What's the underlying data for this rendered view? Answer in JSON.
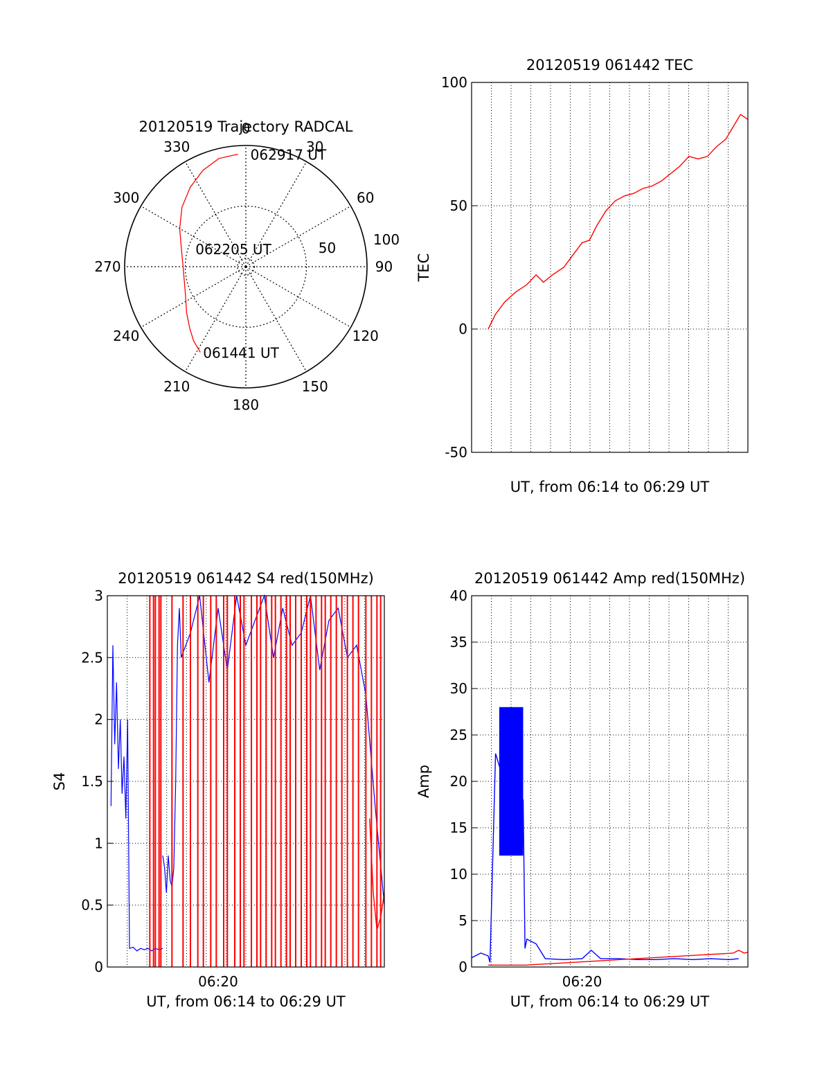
{
  "colors": {
    "red": "#ff0000",
    "blue": "#0000ff",
    "axis": "#000000",
    "grid": "#000000",
    "background": "#ffffff"
  },
  "chart_data": [
    {
      "id": "polar",
      "type": "polar-trajectory",
      "title": "20120519 Trajectory RADCAL",
      "angle_labels": [
        "0",
        "30",
        "60",
        "90",
        "120",
        "150",
        "180",
        "210",
        "240",
        "270",
        "300",
        "330"
      ],
      "radial_labels": [
        "50",
        "100"
      ],
      "rlim": [
        0,
        100
      ],
      "grid": true,
      "series": [
        {
          "color": "red",
          "points": [
            [
              208,
              80
            ],
            [
              215,
              75
            ],
            [
              222,
              69
            ],
            [
              232,
              62
            ],
            [
              245,
              55
            ],
            [
              258,
              52
            ],
            [
              272,
              52
            ],
            [
              285,
              55
            ],
            [
              300,
              63
            ],
            [
              313,
              72
            ],
            [
              325,
              80
            ],
            [
              336,
              87
            ],
            [
              346,
              92
            ],
            [
              356,
              93
            ]
          ]
        }
      ],
      "annotations": [
        {
          "text": "062917 UT",
          "point": [
            356,
            93
          ]
        },
        {
          "text": "062205 UT",
          "point": [
            0,
            0
          ]
        },
        {
          "text": "061441 UT",
          "point": [
            208,
            80
          ]
        }
      ]
    },
    {
      "id": "tec",
      "type": "line",
      "title": "20120519 061442 TEC",
      "xlabel": "UT, from 06:14 to 06:29 UT",
      "ylabel": "TEC",
      "xlim_min": [
        0,
        15
      ],
      "ylim": [
        -50,
        100
      ],
      "yticks": [
        "-50",
        "0",
        "50",
        "100"
      ],
      "grid": true,
      "series": [
        {
          "color": "red",
          "x": [
            0.9,
            1.3,
            1.8,
            2.4,
            3.0,
            3.5,
            3.9,
            4.4,
            5.0,
            5.5,
            6.0,
            6.4,
            6.8,
            7.3,
            7.8,
            8.3,
            8.8,
            9.3,
            9.8,
            10.3,
            10.8,
            11.3,
            11.8,
            12.3,
            12.8,
            13.3,
            13.8,
            14.2,
            14.6,
            15.0
          ],
          "y": [
            0,
            6,
            11,
            15,
            18,
            22,
            19,
            22,
            25,
            30,
            35,
            36,
            42,
            48,
            52,
            54,
            55,
            57,
            58,
            60,
            63,
            66,
            70,
            69,
            70,
            74,
            77,
            82,
            87,
            85
          ]
        }
      ]
    },
    {
      "id": "s4",
      "type": "line",
      "title": "20120519 061442 S4 red(150MHz)",
      "xlabel": "UT, from 06:14 to 06:29 UT",
      "ylabel": "S4",
      "xlim_min": [
        0,
        15
      ],
      "ylim": [
        0,
        3
      ],
      "yticks": [
        "0",
        "0.5",
        "1",
        "1.5",
        "2",
        "2.5",
        "3"
      ],
      "xticks": [
        {
          "x": 6,
          "label": "06:20"
        }
      ],
      "grid": true,
      "series": [
        {
          "color": "blue",
          "segments": [
            {
              "x": [
                0.2,
                0.3,
                0.4,
                0.5,
                0.6,
                0.7,
                0.8,
                0.9,
                1.0,
                1.1,
                1.2,
                1.4,
                1.6,
                1.8,
                2.0,
                2.2,
                2.4,
                2.6,
                2.8,
                3.0
              ],
              "y": [
                1.3,
                2.6,
                1.8,
                2.3,
                1.6,
                2.0,
                1.4,
                1.7,
                1.2,
                2.0,
                0.15,
                0.16,
                0.13,
                0.15,
                0.14,
                0.15,
                0.13,
                0.15,
                0.14,
                0.15
              ]
            },
            {
              "x": [
                3.0,
                3.1,
                3.2,
                3.3,
                3.4,
                3.5,
                3.6,
                3.7,
                3.8,
                3.9,
                4.0,
                4.5,
                5.0,
                5.5,
                6.0,
                6.5,
                7.0,
                7.5,
                8.0,
                8.5,
                9.0,
                9.5,
                10.0,
                10.5,
                11.0,
                11.5,
                12.0,
                12.5,
                13.0,
                13.5,
                14.0,
                14.5,
                15.0
              ],
              "y": [
                0.9,
                0.8,
                0.6,
                0.9,
                0.7,
                0.65,
                0.8,
                1.5,
                2.6,
                2.9,
                2.5,
                2.7,
                3.0,
                2.3,
                2.9,
                2.4,
                3.0,
                2.6,
                2.8,
                3.0,
                2.5,
                2.9,
                2.6,
                2.7,
                3.0,
                2.4,
                2.8,
                2.9,
                2.5,
                2.6,
                2.2,
                1.3,
                0.5
              ]
            }
          ]
        },
        {
          "color": "red",
          "spikes_x": [
            2.3,
            2.5,
            2.6,
            2.8,
            2.9,
            3.5,
            4.1,
            4.5,
            4.9,
            5.2,
            5.6,
            5.9,
            6.3,
            6.5,
            6.9,
            7.2,
            7.4,
            7.8,
            8.1,
            8.3,
            8.6,
            8.9,
            9.1,
            9.4,
            9.7,
            9.9,
            10.2,
            10.5,
            10.8,
            11.0,
            11.3,
            11.6,
            11.8,
            12.1,
            12.4,
            12.7,
            13.0,
            13.3,
            13.6,
            14.0,
            14.3,
            14.6,
            14.8
          ],
          "tail_x": [
            14.2,
            14.4,
            14.6,
            14.8,
            15.0
          ],
          "tail_y": [
            1.2,
            0.6,
            0.3,
            0.4,
            0.6
          ]
        }
      ]
    },
    {
      "id": "amp",
      "type": "line",
      "title": "20120519 061442 Amp red(150MHz)",
      "xlabel": "UT, from 06:14 to 06:29 UT",
      "ylabel": "Amp",
      "xlim_min": [
        0,
        15
      ],
      "ylim": [
        0,
        40
      ],
      "yticks": [
        "0",
        "5",
        "10",
        "15",
        "20",
        "25",
        "30",
        "35",
        "40"
      ],
      "xticks": [
        {
          "x": 6,
          "label": "06:20"
        }
      ],
      "grid": true,
      "series": [
        {
          "color": "blue",
          "x": [
            0.0,
            0.5,
            0.9,
            1.0,
            1.3,
            1.6,
            2.0,
            2.4,
            2.8,
            2.9,
            3.0,
            3.5,
            4.0,
            5.0,
            6.0,
            6.5,
            7.0,
            8.0,
            9.0,
            10.0,
            11.0,
            12.0,
            13.0,
            14.0,
            14.5
          ],
          "y": [
            1.0,
            1.5,
            1.2,
            0.5,
            23,
            21,
            20,
            19,
            18,
            2.0,
            3.0,
            2.5,
            0.9,
            0.8,
            0.9,
            1.8,
            0.9,
            0.9,
            0.8,
            0.8,
            0.9,
            0.8,
            0.9,
            0.8,
            0.9
          ],
          "band_x": [
            1.5,
            2.8
          ],
          "band_y": [
            12,
            28
          ]
        },
        {
          "color": "red",
          "x": [
            0.9,
            1.2,
            1.6,
            2.0,
            2.4,
            2.9,
            14.2,
            14.5,
            14.8,
            15.0
          ],
          "y": [
            0.2,
            0.2,
            0.2,
            0.2,
            0.2,
            0.2,
            1.5,
            1.8,
            1.5,
            1.6
          ]
        }
      ]
    }
  ]
}
